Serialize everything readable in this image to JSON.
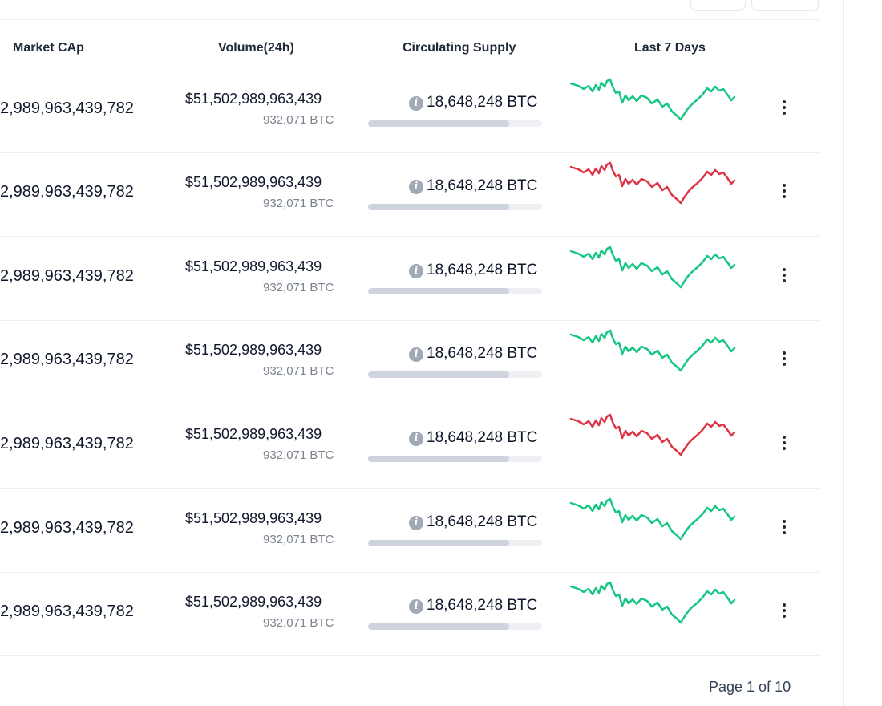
{
  "header": {
    "market_cap": "Market CAp",
    "volume": "Volume(24h)",
    "supply": "Circulating Supply",
    "last7": "Last 7 Days"
  },
  "colors": {
    "up": "#16c784",
    "down": "#dc3545"
  },
  "rows": [
    {
      "market_cap": "2,989,963,439,782",
      "volume": "$51,502,989,963,439",
      "volume_btc": "932,071 BTC",
      "supply": "18,648,248 BTC",
      "supply_progress": 0.81,
      "trend": "up"
    },
    {
      "market_cap": "2,989,963,439,782",
      "volume": "$51,502,989,963,439",
      "volume_btc": "932,071 BTC",
      "supply": "18,648,248 BTC",
      "supply_progress": 0.81,
      "trend": "down"
    },
    {
      "market_cap": "2,989,963,439,782",
      "volume": "$51,502,989,963,439",
      "volume_btc": "932,071 BTC",
      "supply": "18,648,248 BTC",
      "supply_progress": 0.81,
      "trend": "up"
    },
    {
      "market_cap": "2,989,963,439,782",
      "volume": "$51,502,989,963,439",
      "volume_btc": "932,071 BTC",
      "supply": "18,648,248 BTC",
      "supply_progress": 0.81,
      "trend": "up"
    },
    {
      "market_cap": "2,989,963,439,782",
      "volume": "$51,502,989,963,439",
      "volume_btc": "932,071 BTC",
      "supply": "18,648,248 BTC",
      "supply_progress": 0.81,
      "trend": "down"
    },
    {
      "market_cap": "2,989,963,439,782",
      "volume": "$51,502,989,963,439",
      "volume_btc": "932,071 BTC",
      "supply": "18,648,248 BTC",
      "supply_progress": 0.81,
      "trend": "up"
    },
    {
      "market_cap": "2,989,963,439,782",
      "volume": "$51,502,989,963,439",
      "volume_btc": "932,071 BTC",
      "supply": "18,648,248 BTC",
      "supply_progress": 0.81,
      "trend": "up"
    }
  ],
  "pagination": {
    "label": "Page 1 of 10"
  }
}
